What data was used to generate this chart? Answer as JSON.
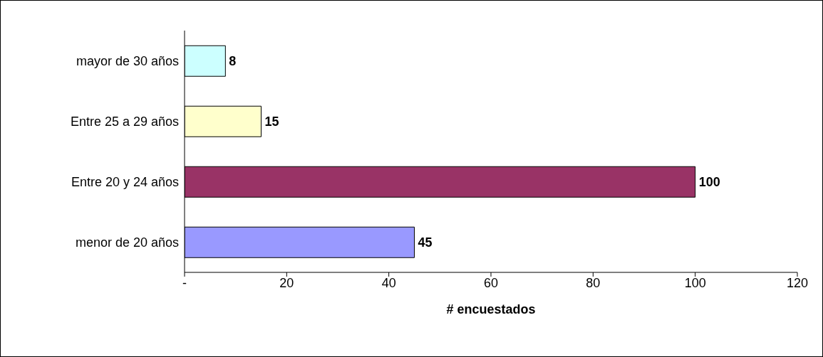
{
  "chart_data": {
    "type": "bar",
    "orientation": "horizontal",
    "categories": [
      "mayor de 30 años",
      "Entre 25 a 29 años",
      "Entre 20 y 24 años",
      "menor de 20 años"
    ],
    "values": [
      8,
      15,
      100,
      45
    ],
    "colors": [
      "#ccffff",
      "#ffffcc",
      "#993366",
      "#9999ff"
    ],
    "xlim": [
      0,
      120
    ],
    "xticks": [
      {
        "value": 0,
        "label": "-"
      },
      20,
      40,
      60,
      80,
      100,
      120
    ],
    "xlabel": "# encuestados",
    "data_labels": true,
    "grid": false,
    "legend": false
  }
}
